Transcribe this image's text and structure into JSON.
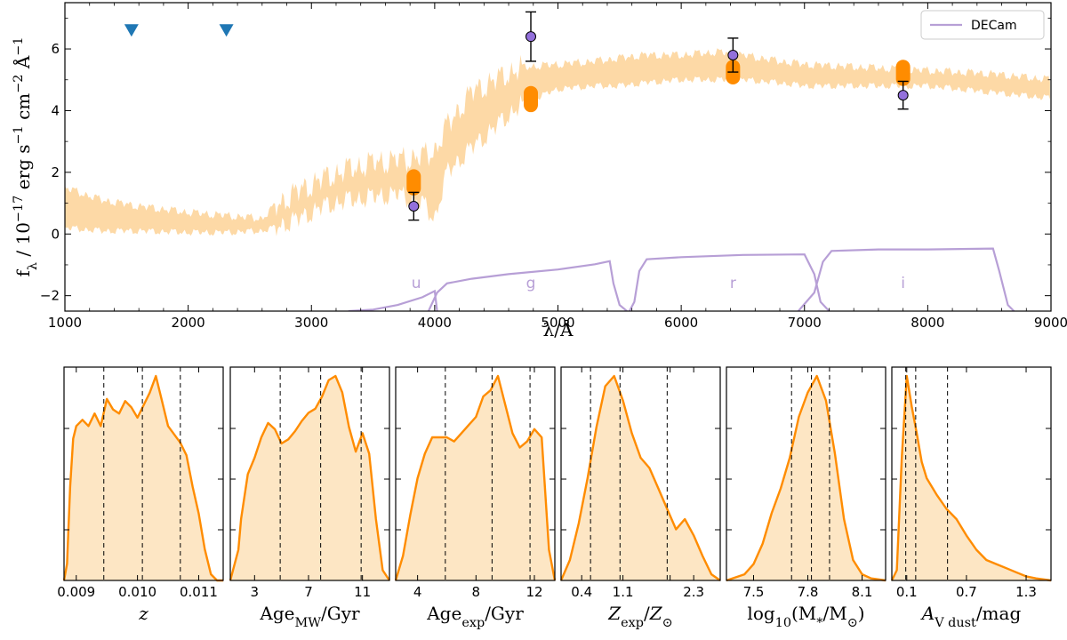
{
  "chart_data": [
    {
      "type": "line",
      "xlabel": "λ/Å",
      "ylabel": "f_λ / 10^−17 erg s^−1 cm^−2 Å^−1",
      "xlim": [
        1000,
        9000
      ],
      "ylim": [
        -2.5,
        7.5
      ],
      "xticks": [
        1000,
        2000,
        3000,
        4000,
        5000,
        6000,
        7000,
        8000,
        9000
      ],
      "yticks": [
        -2,
        0,
        2,
        4,
        6
      ],
      "grid": false,
      "legend": {
        "placement": "top-right",
        "entries": [
          "DECam"
        ]
      },
      "model_spectrum_band": {
        "color": "#fdd9a6",
        "x": [
          1000,
          1300,
          1600,
          2000,
          2300,
          2600,
          2700,
          2900,
          3100,
          3300,
          3500,
          3700,
          3900,
          4000,
          4100,
          4300,
          4500,
          4700,
          5000,
          5300,
          5500,
          5700,
          6000,
          6300,
          6500,
          6800,
          7000,
          7500,
          8000,
          8500,
          9000
        ],
        "y_low": [
          0.2,
          0.1,
          0.1,
          0.05,
          0.05,
          0.1,
          0.2,
          0.5,
          0.9,
          1.1,
          1.2,
          1.3,
          1.0,
          0.5,
          2.0,
          2.8,
          3.5,
          4.2,
          4.7,
          4.8,
          4.8,
          4.9,
          5.0,
          5.0,
          5.0,
          4.9,
          4.8,
          4.8,
          4.8,
          4.6,
          4.4
        ],
        "y_high": [
          1.5,
          1.1,
          0.9,
          0.7,
          0.6,
          0.5,
          0.9,
          1.4,
          1.8,
          2.1,
          2.3,
          2.4,
          2.5,
          2.7,
          3.5,
          4.6,
          5.0,
          5.4,
          5.5,
          5.6,
          5.7,
          5.8,
          5.8,
          5.9,
          5.8,
          5.6,
          5.5,
          5.4,
          5.3,
          5.2,
          5.0
        ]
      },
      "model_photometry": {
        "color": "#ff8c00",
        "points": [
          {
            "x": 3830,
            "y_low": 1.25,
            "y_high": 2.1
          },
          {
            "x": 4780,
            "y_low": 3.95,
            "y_high": 4.8
          },
          {
            "x": 6420,
            "y_low": 4.85,
            "y_high": 5.65
          },
          {
            "x": 7800,
            "y_low": 4.8,
            "y_high": 5.65
          }
        ]
      },
      "observed_photometry": {
        "marker_color": "#9370db",
        "points": [
          {
            "x": 3830,
            "y": 0.9,
            "err": 0.45
          },
          {
            "x": 4780,
            "y": 6.4,
            "err": 0.8
          },
          {
            "x": 6420,
            "y": 5.8,
            "err": 0.55
          },
          {
            "x": 7800,
            "y": 4.5,
            "err": 0.45
          }
        ]
      },
      "upper_limits": {
        "color": "#1f77b4",
        "points": [
          {
            "x": 1540,
            "y": 6.6
          },
          {
            "x": 2310,
            "y": 6.6
          }
        ]
      },
      "filter_curves": {
        "name": "DECam",
        "color": "#b79fd6",
        "filters": [
          {
            "label": "u",
            "label_x": 3850,
            "x": [
              3300,
              3500,
              3700,
              3900,
              4000,
              4020
            ],
            "y": [
              -2.5,
              -2.45,
              -2.3,
              -2.05,
              -1.85,
              -2.5
            ]
          },
          {
            "label": "g",
            "label_x": 4780,
            "x": [
              3950,
              4020,
              4100,
              4300,
              4600,
              5000,
              5300,
              5420,
              5450,
              5500,
              5560
            ],
            "y": [
              -2.5,
              -1.9,
              -1.6,
              -1.45,
              -1.3,
              -1.15,
              -0.98,
              -0.88,
              -1.6,
              -2.3,
              -2.5
            ]
          },
          {
            "label": "r",
            "label_x": 6420,
            "x": [
              5580,
              5620,
              5660,
              5720,
              6000,
              6500,
              7000,
              7080,
              7130,
              7200
            ],
            "y": [
              -2.5,
              -2.2,
              -1.2,
              -0.82,
              -0.75,
              -0.68,
              -0.66,
              -1.3,
              -2.2,
              -2.5
            ]
          },
          {
            "label": "i",
            "label_x": 7800,
            "x": [
              6950,
              7080,
              7150,
              7220,
              7600,
              8000,
              8400,
              8530,
              8580,
              8650,
              8700
            ],
            "y": [
              -2.5,
              -1.9,
              -0.9,
              -0.55,
              -0.5,
              -0.5,
              -0.48,
              -0.47,
              -1.2,
              -2.3,
              -2.5
            ]
          }
        ]
      }
    },
    {
      "type": "area",
      "xlabel": "z",
      "xlim": [
        0.0088,
        0.0114
      ],
      "xticks": [
        0.009,
        0.01,
        0.011
      ],
      "xtick_labels": [
        "0.009",
        "0.010",
        "0.011"
      ],
      "quantiles": [
        0.00945,
        0.01008,
        0.0107
      ],
      "x": [
        0.0088,
        0.00885,
        0.0089,
        0.00895,
        0.009,
        0.0091,
        0.0092,
        0.0093,
        0.0094,
        0.0095,
        0.0096,
        0.0097,
        0.0098,
        0.0099,
        0.01,
        0.0101,
        0.0102,
        0.0103,
        0.0104,
        0.0105,
        0.0106,
        0.0107,
        0.0108,
        0.0109,
        0.011,
        0.0111,
        0.0112,
        0.0113,
        0.0114
      ],
      "y": [
        0.0,
        0.08,
        0.45,
        0.68,
        0.74,
        0.77,
        0.74,
        0.8,
        0.74,
        0.87,
        0.82,
        0.8,
        0.86,
        0.83,
        0.78,
        0.84,
        0.9,
        0.98,
        0.86,
        0.74,
        0.7,
        0.66,
        0.6,
        0.45,
        0.32,
        0.15,
        0.03,
        0.0,
        0.0
      ]
    },
    {
      "type": "area",
      "xlabel": "Age_MW/Gyr",
      "xlim": [
        1.2,
        13.0
      ],
      "xticks": [
        3,
        7,
        11
      ],
      "xtick_labels": [
        "3",
        "7",
        "11"
      ],
      "quantiles": [
        4.9,
        7.9,
        10.9
      ],
      "x": [
        1.2,
        1.8,
        2.0,
        2.5,
        3.0,
        3.5,
        4.0,
        4.5,
        5.0,
        5.5,
        6.0,
        6.5,
        7.0,
        7.5,
        8.0,
        8.5,
        9.0,
        9.5,
        10.0,
        10.5,
        11.0,
        11.5,
        12.0,
        12.5,
        13.0
      ],
      "y": [
        0.0,
        0.15,
        0.3,
        0.52,
        0.6,
        0.7,
        0.77,
        0.74,
        0.67,
        0.69,
        0.73,
        0.78,
        0.82,
        0.84,
        0.9,
        0.98,
        1.0,
        0.92,
        0.75,
        0.63,
        0.72,
        0.62,
        0.3,
        0.05,
        0.0
      ]
    },
    {
      "type": "area",
      "xlabel": "Age_exp/Gyr",
      "xlim": [
        2.5,
        13.4
      ],
      "xticks": [
        4,
        8,
        12
      ],
      "xtick_labels": [
        "4",
        "8",
        "12"
      ],
      "quantiles": [
        5.9,
        9.1,
        11.7
      ],
      "x": [
        2.5,
        3.0,
        3.5,
        4.0,
        4.5,
        5.0,
        5.5,
        6.0,
        6.5,
        7.0,
        7.5,
        8.0,
        8.5,
        9.0,
        9.5,
        10.0,
        10.5,
        11.0,
        11.5,
        12.0,
        12.5,
        13.0,
        13.4
      ],
      "y": [
        0.0,
        0.12,
        0.32,
        0.5,
        0.62,
        0.7,
        0.7,
        0.7,
        0.68,
        0.72,
        0.76,
        0.8,
        0.9,
        0.93,
        1.0,
        0.86,
        0.72,
        0.65,
        0.68,
        0.74,
        0.7,
        0.15,
        0.0
      ]
    },
    {
      "type": "area",
      "xlabel": "Z_exp/Z_⊙",
      "xlim": [
        0.05,
        2.75
      ],
      "xticks": [
        0.4,
        1.1,
        1.9,
        2.3
      ],
      "xtick_labels": [
        "0.4",
        "1.1",
        "",
        "2.3"
      ],
      "quantiles": [
        0.55,
        1.05,
        1.85
      ],
      "x": [
        0.05,
        0.2,
        0.35,
        0.5,
        0.65,
        0.8,
        0.95,
        1.1,
        1.25,
        1.4,
        1.55,
        1.7,
        1.85,
        2.0,
        2.15,
        2.3,
        2.45,
        2.6,
        2.75
      ],
      "y": [
        0.0,
        0.1,
        0.28,
        0.5,
        0.75,
        0.95,
        1.0,
        0.88,
        0.72,
        0.6,
        0.55,
        0.45,
        0.35,
        0.25,
        0.3,
        0.22,
        0.12,
        0.03,
        0.0
      ]
    },
    {
      "type": "area",
      "xlabel": "log10(M_*/M_⊙)",
      "xlim": [
        7.35,
        8.23
      ],
      "xticks": [
        7.5,
        7.8,
        8.1
      ],
      "xtick_labels": [
        "7.5",
        "7.8",
        "8.1"
      ],
      "quantiles": [
        7.71,
        7.82,
        7.92
      ],
      "x": [
        7.35,
        7.45,
        7.5,
        7.55,
        7.6,
        7.65,
        7.7,
        7.75,
        7.8,
        7.85,
        7.9,
        7.95,
        8.0,
        8.05,
        8.1,
        8.15,
        8.23
      ],
      "y": [
        0.0,
        0.03,
        0.08,
        0.18,
        0.33,
        0.45,
        0.6,
        0.8,
        0.92,
        1.0,
        0.88,
        0.62,
        0.3,
        0.1,
        0.03,
        0.01,
        0.0
      ]
    },
    {
      "type": "area",
      "xlabel": "A_V,dust/mag",
      "xlim": [
        -0.05,
        1.55
      ],
      "xticks": [
        0.1,
        0.7,
        1.3
      ],
      "xtick_labels": [
        "0.1",
        "0.7",
        "1.3"
      ],
      "quantiles": [
        0.09,
        0.19,
        0.51
      ],
      "x": [
        -0.05,
        0.0,
        0.05,
        0.1,
        0.15,
        0.2,
        0.25,
        0.3,
        0.4,
        0.5,
        0.6,
        0.7,
        0.8,
        0.9,
        1.0,
        1.1,
        1.2,
        1.3,
        1.4,
        1.55
      ],
      "y": [
        0.0,
        0.05,
        0.6,
        1.0,
        0.85,
        0.72,
        0.58,
        0.5,
        0.42,
        0.35,
        0.3,
        0.22,
        0.15,
        0.1,
        0.08,
        0.06,
        0.04,
        0.02,
        0.01,
        0.0
      ]
    }
  ]
}
